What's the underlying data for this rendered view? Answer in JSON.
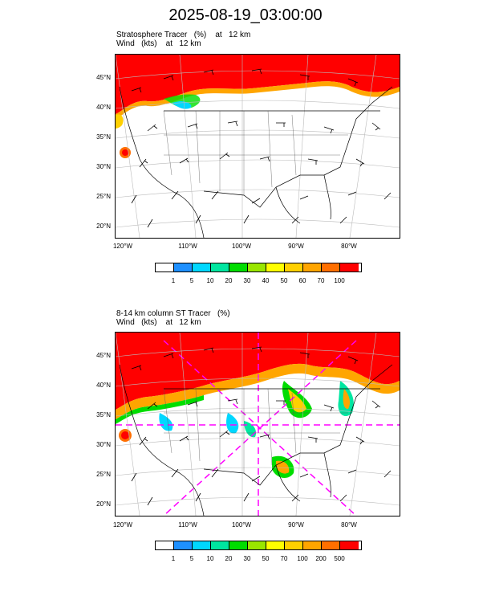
{
  "title": "2025-08-19_03:00:00",
  "colors": [
    "#ffffff",
    "#1e90ff",
    "#00d7ff",
    "#00e6a0",
    "#00dd00",
    "#99e600",
    "#ffff00",
    "#ffd000",
    "#ffa500",
    "#ff6f00",
    "#ff0000"
  ],
  "panel1": {
    "line1": "Stratosphere Tracer   (%)    at   12 km",
    "line2": "Wind   (kts)    at   12 km",
    "cbar_labels": [
      "1",
      "5",
      "10",
      "20",
      "30",
      "40",
      "50",
      "60",
      "70",
      "100"
    ]
  },
  "panel2": {
    "line1": "8-14 km column ST Tracer   (%)",
    "line2": "Wind   (kts)    at   12 km",
    "cbar_labels": [
      "1",
      "5",
      "10",
      "20",
      "30",
      "50",
      "70",
      "100",
      "200",
      "500"
    ]
  },
  "lat_labels": [
    "45°N",
    "40°N",
    "35°N",
    "30°N",
    "25°N",
    "20°N"
  ],
  "lon_labels": [
    "120°W",
    "110°W",
    "100°W",
    "90°W",
    "80°W"
  ]
}
